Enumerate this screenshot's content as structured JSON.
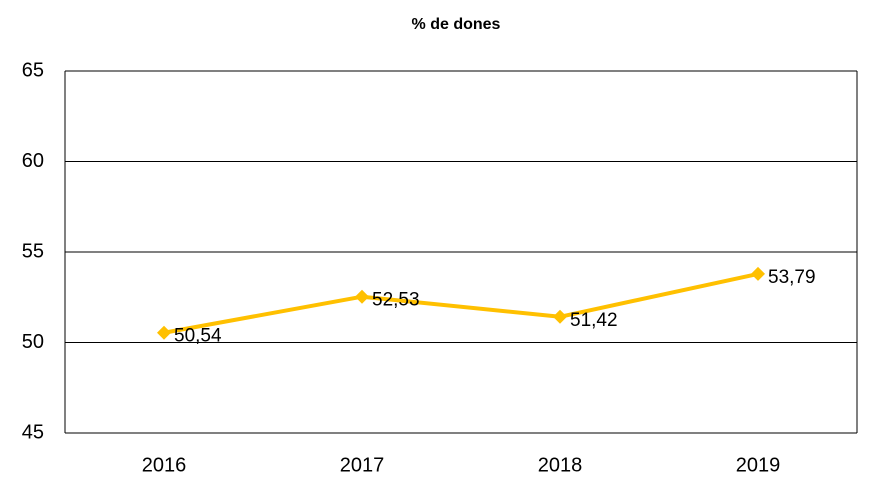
{
  "chart_data": {
    "type": "line",
    "title": "% de dones",
    "categories": [
      "2016",
      "2017",
      "2018",
      "2019"
    ],
    "values": [
      50.54,
      52.53,
      51.42,
      53.79
    ],
    "value_labels": [
      "50,54",
      "52,53",
      "51,42",
      "53,79"
    ],
    "color": "#ffc000",
    "ylim": [
      45,
      65
    ],
    "yticks": [
      45,
      50,
      55,
      60,
      65
    ],
    "grid": true
  }
}
